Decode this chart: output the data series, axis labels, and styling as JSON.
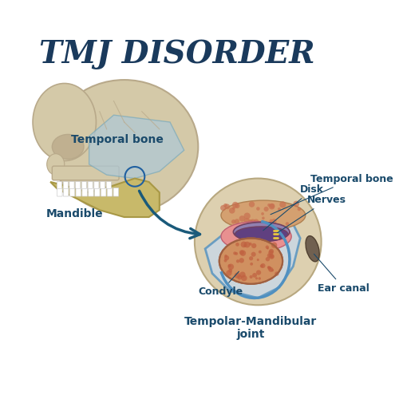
{
  "title": "TMJ DISORDER",
  "title_color": "#1a3a5c",
  "title_fontsize": 28,
  "bg_color": "#ffffff",
  "label_color": "#1a4a6b",
  "label_fontsize": 9,
  "colors": {
    "skull_base": "#d4c9a8",
    "skull_highlight": "#e8dfc0",
    "skull_shadow": "#b8a98a",
    "temporal_bone_overlay": "#adc8d8",
    "mandible": "#c8b96a",
    "mandible_dark": "#a89845",
    "arrow": "#1a5a7a",
    "circle_bg": "#ddd0b0",
    "joint_bg": "#c8d8e8",
    "condyle_outer": "#c88060",
    "condyle_inner": "#e0a080",
    "condyle_spots": "#c06040",
    "disk_purple": "#9080b0",
    "disk_pink": "#e080a0",
    "disk_dark": "#704060",
    "nerves_yellow": "#e8c840",
    "ear_canal_dark": "#706050",
    "capsule_blue": "#5090c0",
    "upper_bone_spots": "#c87050"
  },
  "labels": {
    "temporal_bone": "Temporal bone",
    "mandible": "Mandible",
    "condyle": "Condyle",
    "tmj": "Tempolar-Mandibular\njoint",
    "disk": "Disk",
    "nerves": "Nerves",
    "temporal_bone2": "Temporal bone",
    "ear_canal": "Ear canal"
  }
}
